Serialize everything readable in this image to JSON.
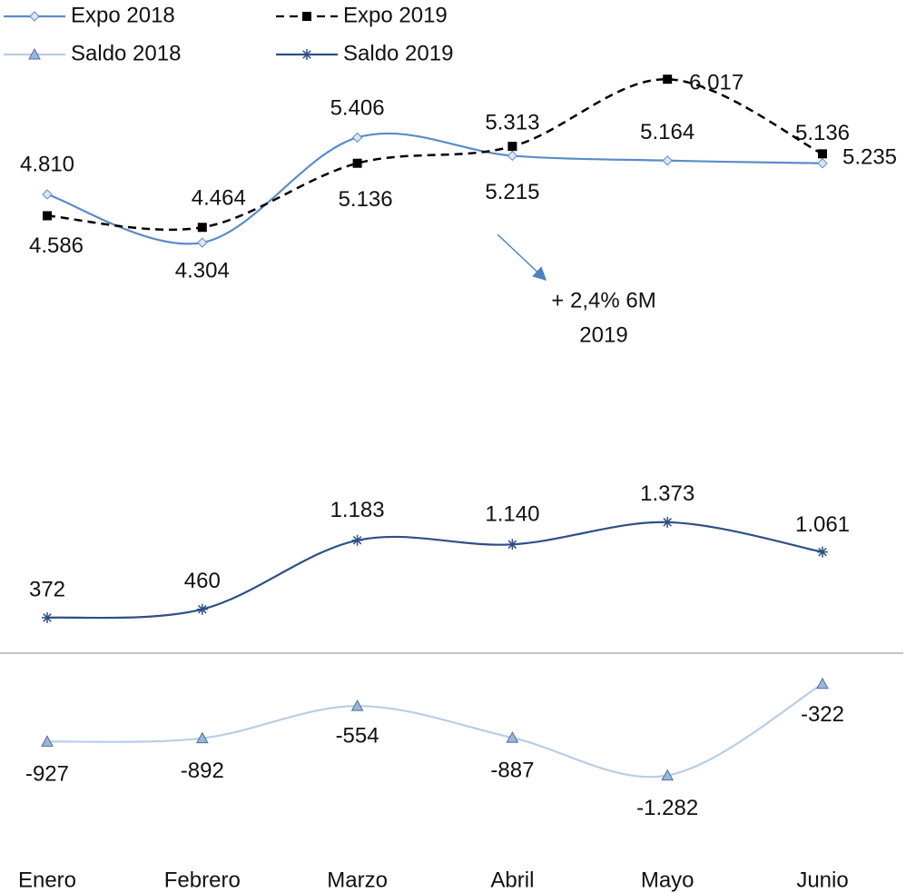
{
  "chart_data": {
    "type": "line",
    "categories": [
      "Enero",
      "Febrero",
      "Marzo",
      "Abril",
      "Mayo",
      "Junio"
    ],
    "ylim": [
      -2000,
      7000
    ],
    "series": [
      {
        "name": "Expo 2018",
        "color": "#5b8bc9",
        "line_style": "solid",
        "marker": "diamond",
        "values": [
          4810,
          4304,
          5406,
          5215,
          5164,
          5136
        ],
        "value_labels": [
          "4.810",
          "4.304",
          "5.406",
          "5.215",
          "5.164",
          "5.136"
        ]
      },
      {
        "name": "Expo 2019",
        "color": "#000000",
        "line_style": "dashed",
        "marker": "square",
        "values": [
          4586,
          4464,
          5136,
          5313,
          6017,
          5235
        ],
        "value_labels": [
          "4.586",
          "4.464",
          "5.136",
          "5.313",
          "6.017",
          "5.235"
        ]
      },
      {
        "name": "Saldo 2018",
        "color": "#b9cde6",
        "line_style": "solid",
        "marker": "triangle",
        "values": [
          -927,
          -892,
          -554,
          -887,
          -1282,
          -322
        ],
        "value_labels": [
          "-927",
          "-892",
          "-554",
          "-887",
          "-1.282",
          "-322"
        ]
      },
      {
        "name": "Saldo 2019",
        "color": "#2e4f85",
        "line_style": "solid",
        "marker": "star",
        "values": [
          372,
          460,
          1183,
          1140,
          1373,
          1061
        ],
        "value_labels": [
          "372",
          "460",
          "1.183",
          "1.140",
          "1.373",
          "1.061"
        ]
      }
    ],
    "annotation": [
      "+ 2,4% 6M",
      "2019"
    ]
  }
}
